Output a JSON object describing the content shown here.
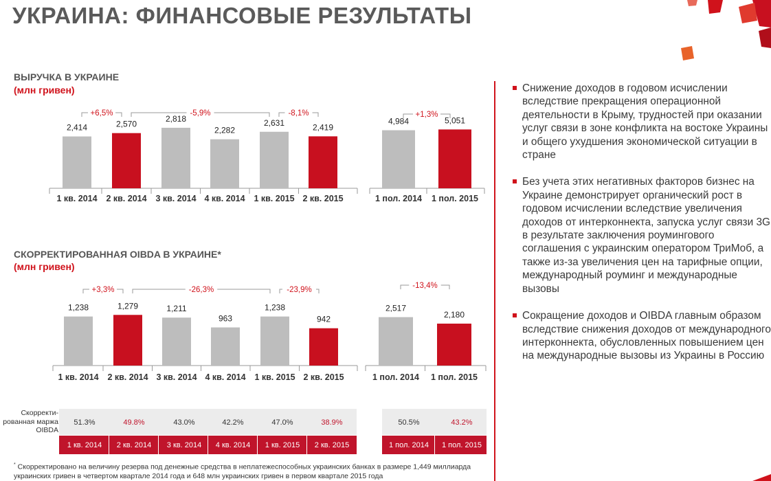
{
  "page": {
    "title": "УКРАИНА: ФИНАНСОВЫЕ РЕЗУЛЬТАТЫ",
    "colors": {
      "accent": "#d0121b",
      "bar_gray": "#bdbdbd",
      "bar_red": "#c8101f"
    }
  },
  "chart_data": [
    {
      "type": "bar",
      "title": "ВЫРУЧКА В УКРАИНЕ",
      "subtitle": "(млн гривен)",
      "categories": [
        "1 кв. 2014",
        "2 кв. 2014",
        "3 кв. 2014",
        "4 кв. 2014",
        "1 кв. 2015",
        "2 кв. 2015"
      ],
      "values": [
        2414,
        2570,
        2818,
        2282,
        2631,
        2419
      ],
      "value_labels": [
        "2,414",
        "2,570",
        "2,818",
        "2,282",
        "2,631",
        "2,419"
      ],
      "highlight": [
        false,
        true,
        false,
        false,
        false,
        true
      ],
      "ylim": [
        0,
        3200
      ],
      "annotations": [
        {
          "label": "+6,5%",
          "from": 0,
          "to": 1
        },
        {
          "label": "-5,9%",
          "from": 1,
          "to": 4
        },
        {
          "label": "-8,1%",
          "from": 4,
          "to": 5
        }
      ]
    },
    {
      "type": "bar",
      "categories": [
        "1 пол. 2014",
        "1 пол. 2015"
      ],
      "values": [
        4984,
        5051
      ],
      "value_labels": [
        "4,984",
        "5,051"
      ],
      "highlight": [
        false,
        true
      ],
      "ylim": [
        0,
        5900
      ],
      "annotations": [
        {
          "label": "+1,3%",
          "from": 0,
          "to": 1
        }
      ]
    },
    {
      "type": "bar",
      "title": "СКОРРЕКТИРОВАННАЯ OIBDA В УКРАИНЕ*",
      "subtitle": "(млн гривен)",
      "categories": [
        "1 кв. 2014",
        "2 кв. 2014",
        "3 кв. 2014",
        "4 кв. 2014",
        "1 кв. 2015",
        "2 кв. 2015"
      ],
      "values": [
        1238,
        1279,
        1211,
        963,
        1238,
        942
      ],
      "value_labels": [
        "1,238",
        "1,279",
        "1,211",
        "963",
        "1,238",
        "942"
      ],
      "highlight": [
        false,
        true,
        false,
        false,
        false,
        true
      ],
      "ylim": [
        0,
        1700
      ],
      "annotations": [
        {
          "label": "+3,3%",
          "from": 0,
          "to": 1
        },
        {
          "label": "-26,3%",
          "from": 1,
          "to": 4
        },
        {
          "label": "-23,9%",
          "from": 4,
          "to": 5
        }
      ]
    },
    {
      "type": "bar",
      "categories": [
        "1 пол. 2014",
        "1 пол. 2015"
      ],
      "values": [
        2517,
        2180
      ],
      "value_labels": [
        "2,517",
        "2,180"
      ],
      "highlight": [
        false,
        true
      ],
      "ylim": [
        0,
        3500
      ],
      "annotations": [
        {
          "label": "-13,4%",
          "from": 0,
          "to": 1
        }
      ]
    }
  ],
  "margin_table": {
    "row_label": "Скорректи-рованная маржа OIBDA",
    "quarters": [
      "1 кв. 2014",
      "2 кв. 2014",
      "3 кв. 2014",
      "4 кв. 2014",
      "1 кв. 2015",
      "2 кв. 2015"
    ],
    "quarter_values": [
      "51.3%",
      "49.8%",
      "43.0%",
      "42.2%",
      "47.0%",
      "38.9%"
    ],
    "quarter_highlight": [
      false,
      true,
      false,
      false,
      false,
      true
    ],
    "halves": [
      "1 пол. 2014",
      "1 пол. 2015"
    ],
    "half_values": [
      "50.5%",
      "43.2%"
    ],
    "half_highlight": [
      false,
      true
    ]
  },
  "bullets": [
    "Снижение доходов в годовом исчислении вследствие прекращения операционной деятельности в Крыму, трудностей при оказании услуг связи в зоне конфликта на востоке Украины и общего ухудшения экономической ситуации в стране",
    "Без учета этих негативных факторов бизнес на Украине демонстрирует органический рост в годовом исчислении вследствие увеличения доходов от интерконнекта, запуска услуг связи 3G в результате заключения роумингового соглашения с украинским оператором ТриМоб, а также из-за увеличения цен на тарифные опции, международный роуминг и международные вызовы",
    "Сокращение доходов и OIBDA главным образом вследствие снижения доходов от международного интерконнекта, обусловленных повышением цен на международные вызовы из Украины в Россию"
  ],
  "footnote": {
    "marker": "*",
    "text": "Скорректировано на величину резерва под денежные средства в неплатежеспособных украинских банках в размере 1,449 миллиарда украинских гривен в четвертом квартале 2014 года и 648 млн украинских гривен в первом квартале 2015 года"
  }
}
